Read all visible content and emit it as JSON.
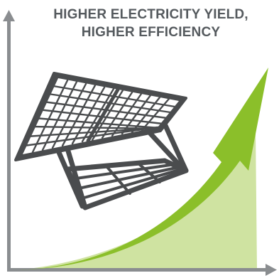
{
  "headline": {
    "line1": "HIGHER ELECTRICITY YIELD,",
    "line2": "HIGHER EFFICIENCY"
  },
  "colors": {
    "axis": "#8a8d90",
    "text": "#555a5e",
    "arrow_green": "#8bbf2a",
    "area_green": "#cfe3a1",
    "panel_dark": "#4a4c4e",
    "panel_light": "#ffffff"
  },
  "icons": {
    "panel": "solar-panel-icon",
    "arrow": "growth-arrow-icon"
  }
}
